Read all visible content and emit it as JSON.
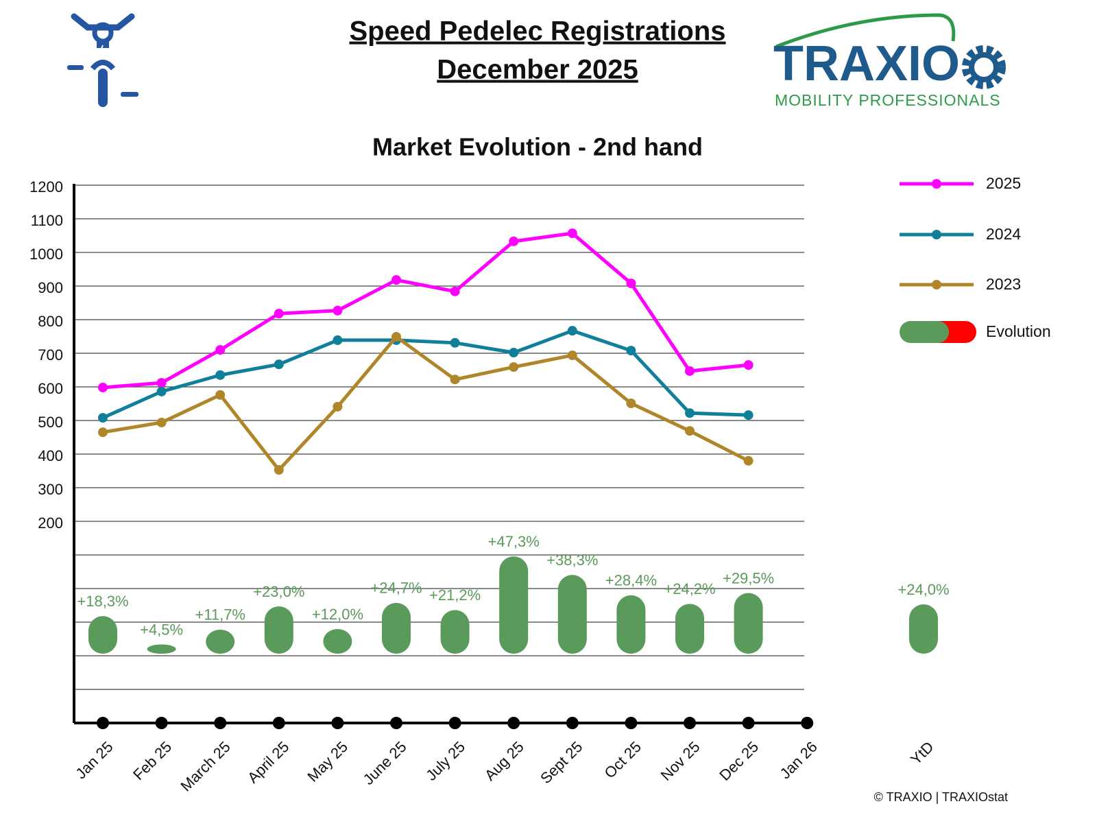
{
  "header": {
    "title_line1": "Speed Pedelec Registrations",
    "title_line2": "December 2025",
    "logo_name": "TRAXIO",
    "logo_tagline": "MOBILITY PROFESSIONALS"
  },
  "footer": {
    "copyright": "© TRAXIO | TRAXIOstat"
  },
  "chart_data": {
    "type": "line",
    "title": "Market Evolution - 2nd hand",
    "categories": [
      "Jan 25",
      "Feb 25",
      "March 25",
      "April 25",
      "May 25",
      "June 25",
      "July 25",
      "Aug 25",
      "Sept 25",
      "Oct 25",
      "Nov 25",
      "Dec 25",
      "Jan 26"
    ],
    "series": [
      {
        "name": "2025",
        "color": "#ff00ff",
        "values": [
          598,
          612,
          710,
          818,
          827,
          918,
          884,
          1033,
          1057,
          908,
          647,
          665,
          null
        ]
      },
      {
        "name": "2024",
        "color": "#0f7f9a",
        "values": [
          508,
          586,
          635,
          667,
          739,
          739,
          731,
          702,
          767,
          708,
          522,
          516,
          null
        ]
      },
      {
        "name": "2023",
        "color": "#b0862a",
        "values": [
          465,
          494,
          576,
          353,
          541,
          749,
          622,
          659,
          694,
          551,
          469,
          380,
          null
        ]
      }
    ],
    "ylim": [
      -400,
      1200
    ],
    "yticks": [
      200,
      300,
      400,
      500,
      600,
      700,
      800,
      900,
      1000,
      1100,
      1200
    ],
    "ygrid": [
      -300,
      -200,
      -100,
      0,
      100
    ],
    "grid": true,
    "legend": "right",
    "evolution": {
      "name": "Evolution",
      "colors": [
        "#5a9a5a",
        "#ff0000"
      ],
      "values": [
        18.3,
        4.5,
        11.7,
        23.0,
        12.0,
        24.7,
        21.2,
        47.3,
        38.3,
        28.4,
        24.2,
        29.5,
        null
      ],
      "value_labels": [
        "+18,3%",
        "+4,5%",
        "+11,7%",
        "+23,0%",
        "+12,0%",
        "+24,7%",
        "+21,2%",
        "+47,3%",
        "+38,3%",
        "+28,4%",
        "+24,2%",
        "+29,5%",
        null
      ],
      "ytd_label": "YtD",
      "ytd_value": 24.0,
      "ytd_value_label": "+24,0%"
    }
  }
}
